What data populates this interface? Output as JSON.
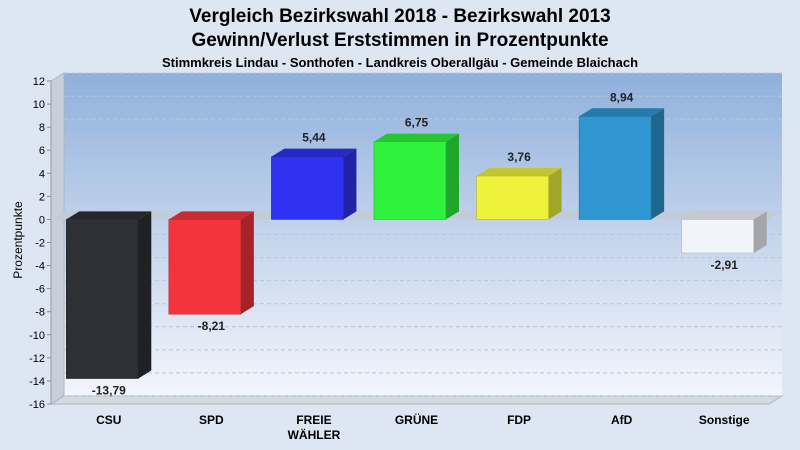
{
  "chart_data": {
    "type": "bar",
    "title": "Vergleich Bezirkswahl 2018 - Bezirkswahl 2013",
    "title2": "Gewinn/Verlust Erststimmen in Prozentpunkte",
    "subtitle": "Stimmkreis Lindau - Sonthofen - Landkreis Oberallgäu - Gemeinde Blaichach",
    "ylabel": "Prozentpunkte",
    "ylim": [
      -16,
      12
    ],
    "yticks": [
      12,
      10,
      8,
      6,
      4,
      2,
      0,
      -2,
      -4,
      -6,
      -8,
      -10,
      -12,
      -14,
      -16
    ],
    "categories": [
      {
        "label": "CSU",
        "label2": ""
      },
      {
        "label": "SPD",
        "label2": ""
      },
      {
        "label": "FREIE",
        "label2": "WÄHLER"
      },
      {
        "label": "GRÜNE",
        "label2": ""
      },
      {
        "label": "FDP",
        "label2": ""
      },
      {
        "label": "AfD",
        "label2": ""
      },
      {
        "label": "Sonstige",
        "label2": ""
      }
    ],
    "values": [
      -13.79,
      -8.21,
      5.44,
      6.75,
      3.76,
      8.94,
      -2.91
    ],
    "value_labels": [
      "-13,79",
      "-8,21",
      "5,44",
      "6,75",
      "3,76",
      "8,94",
      "-2,91"
    ],
    "colors": [
      "#2e3035",
      "#f4343c",
      "#3032f2",
      "#2ef23c",
      "#eef23a",
      "#3096d2",
      "#f1f4fa"
    ],
    "grid": true
  }
}
